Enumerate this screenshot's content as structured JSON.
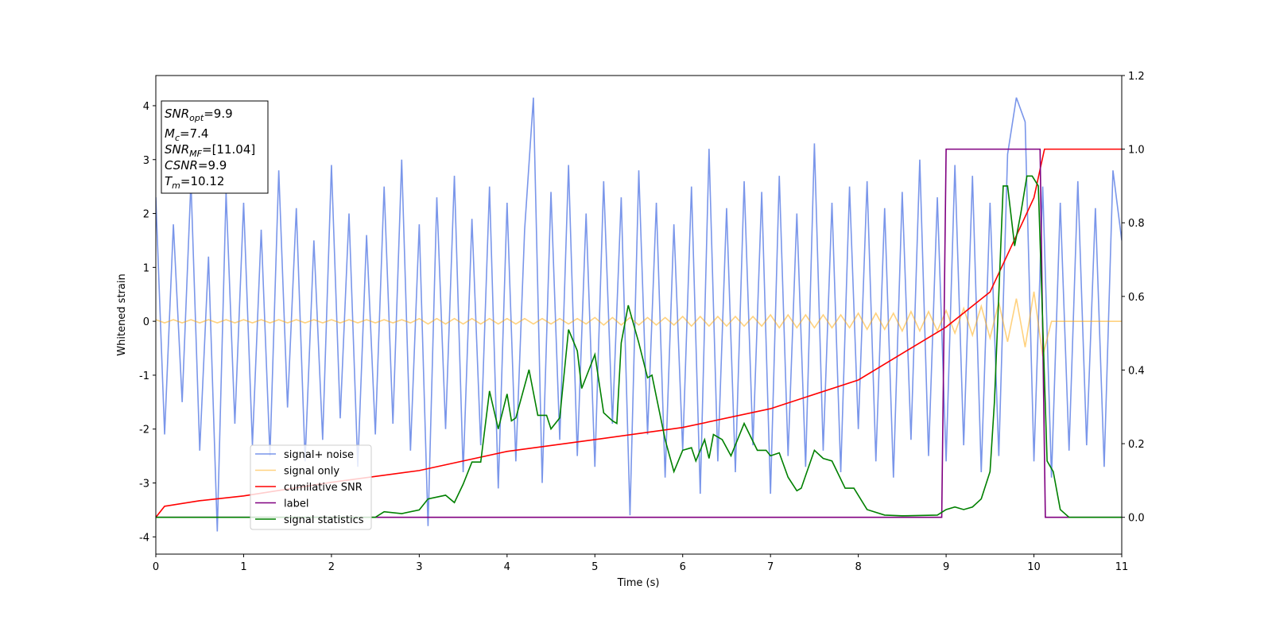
{
  "chart_data": {
    "type": "line",
    "xlabel": "Time (s)",
    "ylabel": "Whitened strain",
    "xlim": [
      0,
      11
    ],
    "ylim": [
      -4.32,
      4.56
    ],
    "y2lim": [
      -0.1,
      1.2
    ],
    "xticks": [
      0,
      1,
      2,
      3,
      4,
      5,
      6,
      7,
      8,
      9,
      10,
      11
    ],
    "yticks": [
      -4,
      -3,
      -2,
      -1,
      0,
      1,
      2,
      3,
      4
    ],
    "y2ticks": [
      {
        "value": 0,
        "label": "0.0"
      },
      0.2,
      0.4,
      0.6,
      0.8,
      {
        "value": 1,
        "label": "1.0"
      },
      1.2
    ],
    "legend": "lower left",
    "annotations": [
      {
        "base": "SNR",
        "sub": "opt",
        "text": "=9.9"
      },
      {
        "base": "M",
        "sub": "c",
        "text": "=7.4"
      },
      {
        "base": "SNR",
        "sub": "MF",
        "text": "=[11.04]"
      },
      {
        "base": "CSNR",
        "text": "=9.9"
      },
      {
        "base": "T",
        "sub": "m",
        "text": "=10.12"
      }
    ],
    "x": [
      0,
      0.1,
      0.2,
      0.3,
      0.4,
      0.5,
      0.6,
      0.7,
      0.8,
      0.9,
      1,
      1.1,
      1.2,
      1.3,
      1.4,
      1.5,
      1.6,
      1.7,
      1.8,
      1.9,
      2,
      2.1,
      2.2,
      2.3,
      2.4,
      2.5,
      2.6,
      2.7,
      2.8,
      2.9,
      3,
      3.1,
      3.2,
      3.3,
      3.4,
      3.5,
      3.6,
      3.7,
      3.8,
      3.9,
      4,
      4.1,
      4.2,
      4.3,
      4.4,
      4.5,
      4.6,
      4.7,
      4.8,
      4.9,
      5,
      5.1,
      5.2,
      5.3,
      5.4,
      5.5,
      5.6,
      5.7,
      5.8,
      5.9,
      6,
      6.1,
      6.2,
      6.3,
      6.4,
      6.5,
      6.6,
      6.7,
      6.8,
      6.9,
      7,
      7.1,
      7.2,
      7.3,
      7.4,
      7.5,
      7.6,
      7.7,
      7.8,
      7.9,
      8,
      8.1,
      8.2,
      8.3,
      8.4,
      8.5,
      8.6,
      8.7,
      8.8,
      8.9,
      9,
      9.1,
      9.2,
      9.3,
      9.4,
      9.5,
      9.6,
      9.7,
      9.8,
      9.9,
      10,
      10.1,
      10.2,
      10.3,
      10.4,
      10.5,
      10.6,
      10.7,
      10.8,
      10.9,
      11
    ],
    "series": [
      {
        "name": "signal+ noise",
        "color": "#4169e1",
        "opacity": 0.7,
        "values": [
          2.3,
          -2.1,
          1.8,
          -1.5,
          2.6,
          -2.4,
          1.2,
          -3.9,
          2.4,
          -1.9,
          2.2,
          -2.3,
          1.7,
          -2.5,
          2.8,
          -1.6,
          2.1,
          -2.6,
          1.5,
          -2.2,
          2.9,
          -1.8,
          2.0,
          -2.7,
          1.6,
          -2.1,
          2.5,
          -1.9,
          3.0,
          -2.4,
          1.8,
          -3.8,
          2.3,
          -2.0,
          2.7,
          -2.8,
          1.9,
          -2.3,
          2.5,
          -3.1,
          2.2,
          -2.6,
          1.7,
          4.15,
          -3.0,
          2.4,
          -2.2,
          2.9,
          -2.5,
          2.0,
          -2.7,
          2.6,
          -1.9,
          2.3,
          -3.6,
          2.8,
          -2.1,
          2.2,
          -2.9,
          1.8,
          -2.4,
          2.5,
          -3.2,
          3.2,
          -2.6,
          2.1,
          -2.8,
          2.6,
          -2.3,
          2.4,
          -3.2,
          2.7,
          -2.5,
          2.0,
          -2.7,
          3.3,
          -2.4,
          2.2,
          -2.8,
          2.5,
          -2.0,
          2.6,
          -2.6,
          2.1,
          -2.9,
          2.4,
          -2.2,
          3.0,
          -2.5,
          2.3,
          -2.6,
          2.9,
          -2.3,
          2.7,
          -2.8,
          2.2,
          -2.5,
          3.1,
          4.15,
          3.7,
          -2.6,
          2.5,
          -2.9,
          2.2,
          -2.4,
          2.6,
          -2.3,
          2.1,
          -2.7,
          2.8,
          1.5
        ]
      },
      {
        "name": "signal only",
        "color": "#ffa500",
        "opacity": 0.5,
        "values": [
          0.03,
          -0.03,
          0.03,
          -0.03,
          0.03,
          -0.03,
          0.03,
          -0.03,
          0.03,
          -0.03,
          0.03,
          -0.03,
          0.03,
          -0.03,
          0.03,
          -0.03,
          0.03,
          -0.03,
          0.03,
          -0.03,
          0.03,
          -0.03,
          0.03,
          -0.03,
          0.03,
          -0.03,
          0.03,
          -0.03,
          0.03,
          -0.03,
          0.05,
          -0.05,
          0.05,
          -0.05,
          0.05,
          -0.05,
          0.05,
          -0.05,
          0.05,
          -0.05,
          0.05,
          -0.05,
          0.05,
          -0.05,
          0.05,
          -0.05,
          0.05,
          -0.05,
          0.05,
          -0.05,
          0.07,
          -0.07,
          0.07,
          -0.07,
          0.07,
          -0.07,
          0.07,
          -0.07,
          0.07,
          -0.07,
          0.09,
          -0.09,
          0.09,
          -0.09,
          0.09,
          -0.09,
          0.09,
          -0.09,
          0.09,
          -0.09,
          0.12,
          -0.12,
          0.12,
          -0.12,
          0.12,
          -0.12,
          0.12,
          -0.12,
          0.12,
          -0.12,
          0.15,
          -0.15,
          0.15,
          -0.15,
          0.15,
          -0.18,
          0.18,
          -0.18,
          0.18,
          -0.18,
          0.2,
          -0.22,
          0.24,
          -0.26,
          0.28,
          -0.31,
          0.35,
          -0.38,
          0.42,
          -0.48,
          0.55,
          -0.65,
          0,
          0,
          0,
          0,
          0,
          0,
          0,
          0,
          0
        ]
      },
      {
        "name": "cumilative SNR",
        "color": "#ff0000",
        "axis": "y2",
        "x": [
          0,
          0.1,
          0.5,
          1,
          2,
          3,
          4,
          5,
          6,
          7,
          8,
          9,
          9.5,
          9.8,
          10,
          10.12,
          11
        ],
        "values": [
          0,
          0.03,
          0.045,
          0.058,
          0.095,
          0.127,
          0.179,
          0.211,
          0.244,
          0.295,
          0.373,
          0.517,
          0.612,
          0.765,
          0.868,
          1,
          1
        ]
      },
      {
        "name": "label",
        "color": "#800080",
        "axis": "y2",
        "x": [
          0,
          8.95,
          9,
          10.07,
          10.13,
          11
        ],
        "values": [
          0,
          0,
          1,
          1,
          0,
          0
        ]
      },
      {
        "name": "signal statistics",
        "color": "#008000",
        "axis": "y2",
        "x": [
          0,
          2.5,
          2.6,
          2.8,
          3,
          3.1,
          3.3,
          3.4,
          3.5,
          3.6,
          3.7,
          3.8,
          3.9,
          4,
          4.05,
          4.1,
          4.25,
          4.35,
          4.45,
          4.5,
          4.6,
          4.7,
          4.8,
          4.85,
          5,
          5.1,
          5.2,
          5.25,
          5.3,
          5.38,
          5.5,
          5.6,
          5.65,
          5.8,
          5.9,
          6,
          6.1,
          6.15,
          6.25,
          6.3,
          6.35,
          6.45,
          6.55,
          6.7,
          6.85,
          6.95,
          7,
          7.1,
          7.2,
          7.3,
          7.35,
          7.5,
          7.6,
          7.7,
          7.85,
          7.95,
          8.1,
          8.3,
          8.5,
          8.9,
          9,
          9.1,
          9.2,
          9.3,
          9.4,
          9.5,
          9.55,
          9.6,
          9.65,
          9.7,
          9.78,
          9.85,
          9.92,
          9.98,
          10.05,
          10.15,
          10.22,
          10.3,
          10.4,
          11
        ],
        "values": [
          0,
          0,
          0.015,
          0.01,
          0.02,
          0.05,
          0.06,
          0.04,
          0.09,
          0.15,
          0.15,
          0.343,
          0.24,
          0.335,
          0.262,
          0.27,
          0.401,
          0.277,
          0.277,
          0.24,
          0.27,
          0.51,
          0.452,
          0.35,
          0.442,
          0.284,
          0.262,
          0.255,
          0.474,
          0.576,
          0.474,
          0.379,
          0.386,
          0.211,
          0.124,
          0.182,
          0.189,
          0.153,
          0.211,
          0.16,
          0.225,
          0.211,
          0.167,
          0.255,
          0.182,
          0.182,
          0.167,
          0.175,
          0.109,
          0.072,
          0.079,
          0.182,
          0.16,
          0.153,
          0.079,
          0.079,
          0.021,
          0.006,
          0.004,
          0.006,
          0.021,
          0.028,
          0.021,
          0.028,
          0.05,
          0.124,
          0.313,
          0.605,
          0.9,
          0.9,
          0.737,
          0.825,
          0.927,
          0.927,
          0.9,
          0.153,
          0.124,
          0.021,
          0,
          0
        ]
      }
    ]
  }
}
